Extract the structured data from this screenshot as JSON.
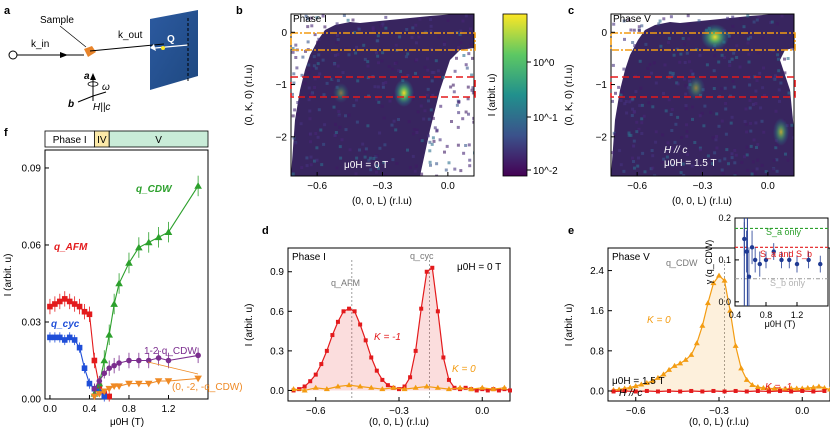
{
  "figure": {
    "panel_labels": [
      "a",
      "b",
      "c",
      "d",
      "e",
      "f"
    ]
  },
  "panel_a": {
    "sample_label": "Sample",
    "kin_label": "k_in",
    "kout_label": "k_out",
    "q_label": "Q",
    "axis_a": "a",
    "axis_b": "b",
    "omega": "ω",
    "field_label": "H||c",
    "colors": {
      "detector": "#2f5d9e",
      "sample": "#e8842b"
    }
  },
  "chart_data": [
    {
      "id": "b",
      "type": "heatmap",
      "title": "Phase I",
      "xlabel": "(0, 0, L) (r.l.u)",
      "ylabel": "(0, K, 0) (r.l.u)",
      "xlim": [
        -0.72,
        0.12
      ],
      "ylim": [
        -2.75,
        0.35
      ],
      "xticks": [
        -0.6,
        -0.3,
        0.0
      ],
      "xtick_labels": [
        "−0.6",
        "−0.3",
        "0.0"
      ],
      "yticks": [
        0,
        -1,
        -2
      ],
      "ytick_labels": [
        "0",
        "−1",
        "−2"
      ],
      "annotation": "μ0H = 0 T",
      "hot_spots": [
        {
          "L": -0.19,
          "K": -1.0,
          "label": "q_cyc"
        },
        {
          "L": -0.47,
          "K": -1.0,
          "label": "q_AFM"
        }
      ],
      "orange_band_K": [
        -0.17,
        0.2
      ],
      "red_band_K": [
        -1.2,
        -0.83
      ]
    },
    {
      "id": "colorbar",
      "type": "heatmap",
      "ylabel": "I (arbit. u)",
      "scale": "log",
      "ylim": [
        0.01,
        5
      ],
      "tick_labels": [
        "10^0",
        "10^-1",
        "10^-2"
      ],
      "colormap": [
        "#440154",
        "#3b528b",
        "#21908d",
        "#5dc863",
        "#fde725"
      ]
    },
    {
      "id": "d",
      "type": "heatmap",
      "title": "Phase V",
      "xlabel": "(0, 0, L) (r.l.u)",
      "ylabel": "(0, K, 0) (r.l.u)",
      "xlim": [
        -0.72,
        0.12
      ],
      "ylim": [
        -2.75,
        0.35
      ],
      "xticks": [
        -0.6,
        -0.3,
        0.0
      ],
      "xtick_labels": [
        "−0.6",
        "−0.3",
        "0.0"
      ],
      "yticks": [
        0,
        -1,
        -2
      ],
      "ytick_labels": [
        "0",
        "−1",
        "−2"
      ],
      "annotation": [
        "H // c",
        "μ0H = 1.5 T"
      ],
      "hot_spots": [
        {
          "L": -0.28,
          "K": 0.05,
          "label": "q_CDW"
        },
        {
          "L": -0.35,
          "K": -0.9,
          "label": ""
        },
        {
          "L": 0.0,
          "K": -2.0,
          "label": ""
        }
      ],
      "orange_band_K": [
        -0.17,
        0.2
      ],
      "red_band_K": [
        -1.2,
        -0.83
      ]
    },
    {
      "id": "c",
      "type": "line",
      "title": "Phase I",
      "annotation": "μ0H = 0 T",
      "xlabel": "(0, 0, L) (r.l.u)",
      "ylabel": "I (arbit. u)",
      "xlim": [
        -0.7,
        0.1
      ],
      "ylim": [
        -0.08,
        1.08
      ],
      "xticks": [
        -0.6,
        -0.3,
        0.0
      ],
      "xtick_labels": [
        "−0.6",
        "−0.3",
        "0.0"
      ],
      "yticks": [
        0.0,
        0.3,
        0.6,
        0.9
      ],
      "ytick_labels": [
        "0.0",
        "0.3",
        "0.6",
        "0.9"
      ],
      "peak_labels": [
        {
          "text": "q_AFM",
          "L": -0.47
        },
        {
          "text": "q_cyc",
          "L": -0.19
        }
      ],
      "series": [
        {
          "name": "K = -1",
          "color": "#e31a1c",
          "x": [
            -0.68,
            -0.66,
            -0.64,
            -0.62,
            -0.6,
            -0.58,
            -0.56,
            -0.54,
            -0.52,
            -0.5,
            -0.48,
            -0.46,
            -0.44,
            -0.42,
            -0.4,
            -0.38,
            -0.36,
            -0.34,
            -0.32,
            -0.3,
            -0.28,
            -0.26,
            -0.24,
            -0.22,
            -0.2,
            -0.18,
            -0.16,
            -0.14,
            -0.12,
            -0.1,
            -0.08,
            -0.06,
            -0.04,
            -0.02,
            0.0,
            0.02,
            0.04,
            0.06,
            0.08,
            0.1
          ],
          "y": [
            0.0,
            0.01,
            0.03,
            0.07,
            0.12,
            0.2,
            0.3,
            0.42,
            0.52,
            0.6,
            0.62,
            0.6,
            0.5,
            0.38,
            0.25,
            0.15,
            0.08,
            0.04,
            0.02,
            0.01,
            0.03,
            0.1,
            0.3,
            0.62,
            0.9,
            0.93,
            0.6,
            0.25,
            0.08,
            0.02,
            0.01,
            0.02,
            0.01,
            0.0,
            0.01,
            0.0,
            0.01,
            0.0,
            0.01,
            0.0
          ]
        },
        {
          "name": "K = 0",
          "color": "#f39c12",
          "x": [
            -0.68,
            -0.64,
            -0.6,
            -0.56,
            -0.52,
            -0.48,
            -0.44,
            -0.4,
            -0.36,
            -0.32,
            -0.28,
            -0.24,
            -0.2,
            -0.16,
            -0.12,
            -0.08,
            -0.04,
            0.0,
            0.04,
            0.08
          ],
          "y": [
            0.01,
            0.0,
            0.02,
            0.01,
            0.03,
            0.04,
            0.03,
            0.02,
            0.01,
            0.02,
            0.01,
            0.02,
            0.03,
            0.02,
            0.01,
            0.02,
            0.01,
            0.02,
            0.01,
            0.02
          ]
        }
      ]
    },
    {
      "id": "e",
      "type": "line",
      "title": "Phase V",
      "annotation": [
        "μ0H = 1.5 T",
        "H // c"
      ],
      "xlabel": "(0, 0, L) (r.l.u)",
      "ylabel": "I (arbit. u)",
      "xlim": [
        -0.7,
        0.1
      ],
      "ylim": [
        -0.2,
        2.85
      ],
      "xticks": [
        -0.6,
        -0.3,
        0.0
      ],
      "xtick_labels": [
        "−0.6",
        "−0.3",
        "0.0"
      ],
      "yticks": [
        0.0,
        0.8,
        1.6,
        2.4
      ],
      "ytick_labels": [
        "0.0",
        "0.8",
        "1.6",
        "2.4"
      ],
      "peak_labels": [
        {
          "text": "q_CDW",
          "L": -0.28
        }
      ],
      "series": [
        {
          "name": "K = 0",
          "color": "#f39c12",
          "x": [
            -0.68,
            -0.66,
            -0.64,
            -0.62,
            -0.6,
            -0.58,
            -0.56,
            -0.54,
            -0.52,
            -0.5,
            -0.48,
            -0.46,
            -0.44,
            -0.42,
            -0.4,
            -0.38,
            -0.36,
            -0.34,
            -0.32,
            -0.3,
            -0.28,
            -0.26,
            -0.24,
            -0.22,
            -0.2,
            -0.18,
            -0.16,
            -0.14,
            -0.12,
            -0.1,
            -0.08,
            -0.06,
            -0.04,
            -0.02,
            0.0,
            0.02,
            0.04,
            0.06,
            0.08,
            0.1
          ],
          "y": [
            0.02,
            0.03,
            0.05,
            0.07,
            0.1,
            0.13,
            0.16,
            0.2,
            0.26,
            0.33,
            0.42,
            0.5,
            0.55,
            0.62,
            0.72,
            0.95,
            1.3,
            1.75,
            2.15,
            2.3,
            2.2,
            1.6,
            0.9,
            0.45,
            0.22,
            0.12,
            0.08,
            0.06,
            0.05,
            0.05,
            0.04,
            0.04,
            0.05,
            0.05,
            0.05,
            0.06,
            0.07,
            0.09,
            0.06,
            0.03
          ]
        },
        {
          "name": "K = -1",
          "color": "#e31a1c",
          "x": [
            -0.68,
            -0.64,
            -0.6,
            -0.56,
            -0.52,
            -0.48,
            -0.44,
            -0.4,
            -0.36,
            -0.32,
            -0.28,
            -0.24,
            -0.2,
            -0.16,
            -0.12,
            -0.08,
            -0.04,
            0.0,
            0.04,
            0.08
          ],
          "y": [
            -0.01,
            0.0,
            -0.01,
            0.0,
            -0.01,
            0.0,
            -0.01,
            0.0,
            -0.01,
            0.0,
            -0.01,
            0.0,
            -0.01,
            0.0,
            -0.01,
            0.0,
            -0.01,
            0.0,
            -0.01,
            0.0
          ]
        }
      ]
    },
    {
      "id": "e_inset",
      "type": "scatter",
      "xlabel": "μ0H (T)",
      "ylabel": "γ (q_CDW)",
      "xlim": [
        0.4,
        1.6
      ],
      "ylim": [
        -0.01,
        0.2
      ],
      "xticks": [
        0.4,
        0.8,
        1.2
      ],
      "xtick_labels": [
        "0.4",
        "0.8",
        "1.2"
      ],
      "yticks": [
        0.0,
        0.1,
        0.2
      ],
      "ytick_labels": [
        "0.0",
        "0.1",
        "0.2"
      ],
      "reference_lines": [
        {
          "label": "S_a only",
          "y": 0.175,
          "color": "#2ca02c"
        },
        {
          "label": "S_a and S_b",
          "y": 0.13,
          "color": "#e31a1c"
        },
        {
          "label": "S_b only",
          "y": 0.055,
          "color": "#999999"
        }
      ],
      "series": [
        {
          "name": "γ",
          "color": "#1f3a93",
          "x": [
            0.52,
            0.55,
            0.58,
            0.62,
            0.66,
            0.72,
            0.8,
            0.9,
            1.0,
            1.1,
            1.2,
            1.35,
            1.5
          ],
          "y": [
            0.15,
            0.12,
            0.06,
            0.13,
            0.1,
            0.09,
            0.1,
            0.12,
            0.1,
            0.1,
            0.09,
            0.1,
            0.09
          ],
          "err": [
            0.04,
            0.05,
            0.07,
            0.04,
            0.03,
            0.03,
            0.02,
            0.02,
            0.02,
            0.02,
            0.02,
            0.02,
            0.02
          ]
        }
      ]
    },
    {
      "id": "f",
      "type": "line",
      "xlabel": "μ0H (T)",
      "ylabel": "I (arbit. u)",
      "xlim": [
        -0.05,
        1.6
      ],
      "ylim": [
        0.0,
        0.097
      ],
      "xticks": [
        0.0,
        0.4,
        0.8,
        1.2
      ],
      "xtick_labels": [
        "0.0",
        "0.4",
        "0.8",
        "1.2"
      ],
      "yticks": [
        0.0,
        0.03,
        0.06,
        0.09
      ],
      "ytick_labels": [
        "0.00",
        "0.03",
        "0.06",
        "0.09"
      ],
      "phases": [
        {
          "label": "Phase I",
          "from": -0.05,
          "to": 0.45,
          "color": "#ffffff"
        },
        {
          "label": "IV",
          "from": 0.45,
          "to": 0.6,
          "color": "#fbe9a8"
        },
        {
          "label": "V",
          "from": 0.6,
          "to": 1.6,
          "color": "#c9ecd8"
        }
      ],
      "series": [
        {
          "name": "q_AFM",
          "color": "#e31a1c",
          "marker": "square",
          "x": [
            0.0,
            0.05,
            0.1,
            0.15,
            0.2,
            0.25,
            0.3,
            0.35,
            0.4,
            0.45,
            0.5,
            0.55,
            0.6
          ],
          "y": [
            0.036,
            0.037,
            0.038,
            0.039,
            0.038,
            0.037,
            0.036,
            0.034,
            0.033,
            0.015,
            0.005,
            0.002,
            0.001
          ],
          "err": [
            0.003,
            0.003,
            0.003,
            0.003,
            0.003,
            0.003,
            0.003,
            0.003,
            0.003,
            0.003,
            0.002,
            0.002,
            0.002
          ]
        },
        {
          "name": "q_cyc",
          "color": "#1f4ed8",
          "marker": "square",
          "x": [
            0.0,
            0.05,
            0.1,
            0.15,
            0.2,
            0.25,
            0.3,
            0.35,
            0.4,
            0.45,
            0.5,
            0.55
          ],
          "y": [
            0.024,
            0.024,
            0.024,
            0.023,
            0.024,
            0.023,
            0.02,
            0.012,
            0.006,
            0.004,
            0.003,
            0.001
          ],
          "err": [
            0.002,
            0.002,
            0.002,
            0.002,
            0.002,
            0.002,
            0.002,
            0.002,
            0.002,
            0.002,
            0.002,
            0.002
          ]
        },
        {
          "name": "q_CDW",
          "color": "#2ca02c",
          "marker": "triangle",
          "x": [
            0.45,
            0.5,
            0.55,
            0.6,
            0.65,
            0.7,
            0.8,
            0.9,
            1.0,
            1.1,
            1.2,
            1.5
          ],
          "y": [
            0.002,
            0.006,
            0.015,
            0.025,
            0.037,
            0.045,
            0.053,
            0.059,
            0.061,
            0.063,
            0.065,
            0.083
          ],
          "err": [
            0.002,
            0.003,
            0.004,
            0.004,
            0.004,
            0.004,
            0.004,
            0.004,
            0.004,
            0.004,
            0.004,
            0.004
          ]
        },
        {
          "name": "1-2·q_CDW",
          "color": "#7b2d8e",
          "marker": "circle",
          "x": [
            0.45,
            0.5,
            0.55,
            0.6,
            0.65,
            0.7,
            0.8,
            0.9,
            1.0,
            1.1,
            1.2,
            1.5
          ],
          "y": [
            0.004,
            0.007,
            0.01,
            0.012,
            0.013,
            0.014,
            0.015,
            0.015,
            0.015,
            0.016,
            0.015,
            0.017
          ],
          "err": [
            0.002,
            0.002,
            0.002,
            0.003,
            0.003,
            0.003,
            0.003,
            0.003,
            0.003,
            0.003,
            0.003,
            0.003
          ]
        },
        {
          "name": "(0, -2, -q_CDW)",
          "color": "#ef8a25",
          "marker": "triangle-down",
          "x": [
            0.45,
            0.5,
            0.55,
            0.6,
            0.65,
            0.7,
            0.8,
            0.9,
            1.0,
            1.1,
            1.2,
            1.5
          ],
          "y": [
            0.001,
            0.002,
            0.003,
            0.004,
            0.005,
            0.005,
            0.006,
            0.006,
            0.006,
            0.007,
            0.007,
            0.008
          ],
          "err": [
            0.001,
            0.001,
            0.001,
            0.001,
            0.001,
            0.001,
            0.001,
            0.001,
            0.001,
            0.001,
            0.001,
            0.001
          ]
        }
      ]
    }
  ]
}
